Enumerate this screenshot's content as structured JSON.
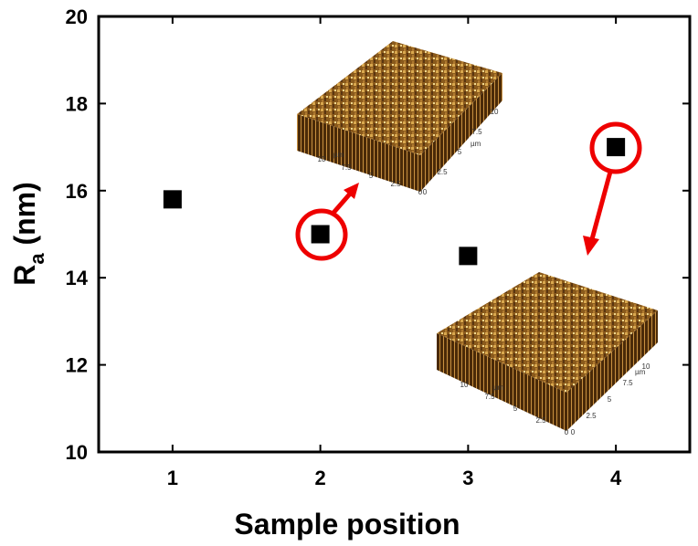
{
  "chart_data": {
    "type": "scatter",
    "x_label": "Sample position",
    "y_label": [
      "R",
      "a",
      " (nm)"
    ],
    "x": [
      1,
      2,
      3,
      4
    ],
    "values": [
      15.8,
      15.0,
      14.5,
      17.0
    ],
    "color": "#000000",
    "xlim": [
      0.5,
      4.5
    ],
    "ylim": [
      10,
      20
    ],
    "xticks": [
      1,
      2,
      3,
      4
    ],
    "yticks": [
      10,
      12,
      14,
      16,
      18,
      20
    ],
    "insets": [
      {
        "ticks": [
          "0",
          "2.5",
          "5",
          "7.5",
          "10"
        ],
        "unit": "µm"
      },
      {
        "ticks": [
          "0",
          "2.5",
          "5",
          "7.5",
          "10"
        ],
        "unit": "µm"
      }
    ]
  }
}
